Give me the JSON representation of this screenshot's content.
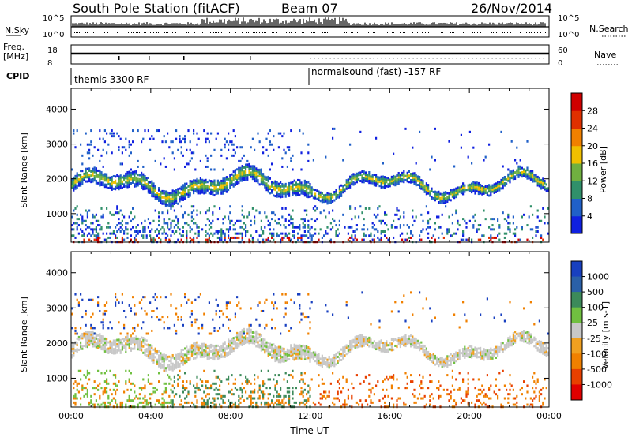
{
  "header": {
    "title": "South Pole Station (fitACF)",
    "beam": "Beam 07",
    "date": "26/Nov/2014"
  },
  "panels": {
    "nsky": {
      "label": "N.Sky",
      "left_ticks": [
        "10^5",
        "10^0"
      ],
      "right_ticks": [
        "10^5",
        "10^0"
      ],
      "right_label": "N.Search"
    },
    "freq": {
      "label_line1": "Freq.",
      "label_line2": "[MHz]",
      "left_ticks": [
        "18",
        "8"
      ],
      "right_ticks": [
        "60",
        "0"
      ],
      "right_label": "Nave"
    },
    "cpid": {
      "label": "CPID",
      "segments": [
        {
          "text": "themis 3300 RF",
          "start_hour": 0
        },
        {
          "text": "normalsound (fast) -157 RF",
          "start_hour": 12
        }
      ]
    }
  },
  "chart_data": [
    {
      "type": "heatmap",
      "name": "Power",
      "ylabel": "Slant Range [km]",
      "xlabel": "",
      "ylim": [
        180,
        4600
      ],
      "yticks": [
        "1000",
        "2000",
        "3000",
        "4000"
      ],
      "colorbar": {
        "label": "Power [dB]",
        "ticks": [
          "4",
          "8",
          "12",
          "16",
          "20",
          "24",
          "28"
        ],
        "colors": [
          "#1020e0",
          "#2060c8",
          "#30906a",
          "#70b040",
          "#f0c000",
          "#f08000",
          "#e03000",
          "#d00000"
        ]
      }
    },
    {
      "type": "heatmap",
      "name": "Velocity",
      "ylabel": "Slant Range [km]",
      "xlabel": "Time UT",
      "ylim": [
        180,
        4600
      ],
      "yticks": [
        "1000",
        "2000",
        "3000",
        "4000"
      ],
      "xticks": [
        "00:00",
        "04:00",
        "08:00",
        "12:00",
        "16:00",
        "20:00",
        "00:00"
      ],
      "colorbar": {
        "label": "Velocity [m s-1]",
        "ticks": [
          "1000",
          "500",
          "100",
          "25",
          "-25",
          "-100",
          "-500",
          "-1000"
        ],
        "colors": [
          "#1840c0",
          "#2a60a8",
          "#3c8a5a",
          "#70c040",
          "#c8c8c8",
          "#f0a020",
          "#f08000",
          "#e84000",
          "#e00000"
        ]
      }
    }
  ]
}
